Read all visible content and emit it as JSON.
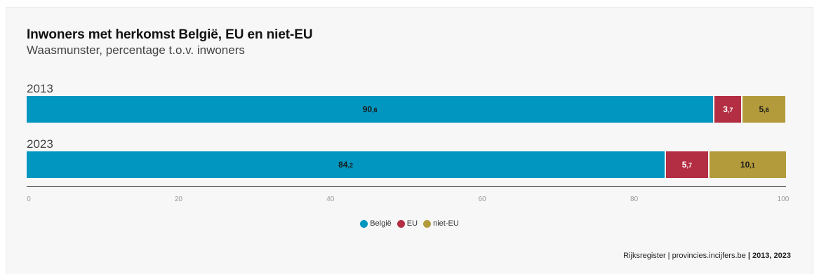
{
  "chart_data": {
    "type": "bar",
    "orientation": "horizontal",
    "stacked": true,
    "title": "Inwoners met herkomst België, EU en niet-EU",
    "subtitle": "Waasmunster, percentage t.o.v. inwoners",
    "categories": [
      "2013",
      "2023"
    ],
    "series": [
      {
        "name": "België",
        "values": [
          90.6,
          84.2
        ],
        "labels": [
          [
            "90",
            ",6"
          ],
          [
            "84",
            ",2"
          ]
        ],
        "color": "#0096bf",
        "label_color": "#1a1a1a"
      },
      {
        "name": "EU",
        "values": [
          3.7,
          5.7
        ],
        "labels": [
          [
            "3",
            ",7"
          ],
          [
            "5",
            ",7"
          ]
        ],
        "color": "#b32d43",
        "label_color": "#ffffff"
      },
      {
        "name": "niet-EU",
        "values": [
          5.6,
          10.1
        ],
        "labels": [
          [
            "5",
            ",6"
          ],
          [
            "10",
            ",1"
          ]
        ],
        "color": "#b39b3c",
        "label_color": "#1a1a1a"
      }
    ],
    "xlim": [
      0,
      100
    ],
    "x_ticks": [
      "0",
      "20",
      "40",
      "60",
      "80",
      "100"
    ],
    "grid": false,
    "legend_position": "bottom-center"
  },
  "source": {
    "text": "Rijksregister | provincies.incijfers.be ",
    "years": "| 2013, 2023"
  }
}
